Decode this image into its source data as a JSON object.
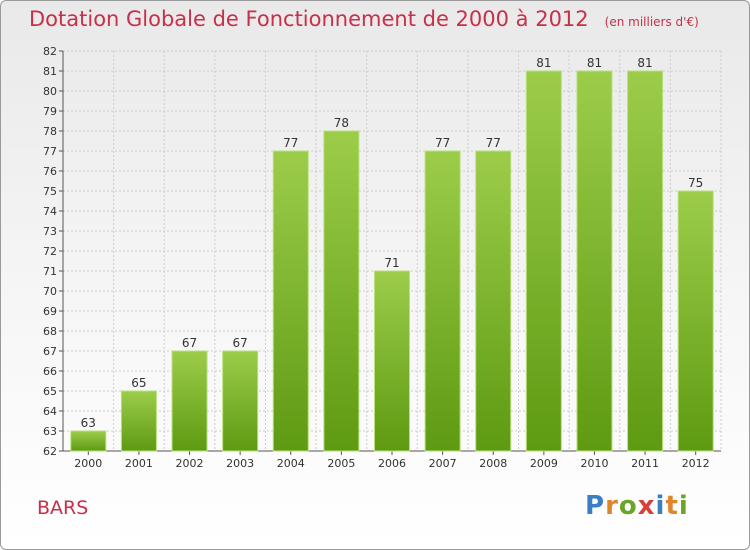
{
  "title": "Dotation Globale de Fonctionnement de 2000 à 2012",
  "subtitle": "(en milliers d'€)",
  "commune": "BARS",
  "logo": {
    "text": "Proxiti",
    "colors": [
      "#3a7fc4",
      "#e0862a",
      "#6aa52a",
      "#d6403a",
      "#3a7fc4",
      "#e0862a",
      "#6aa52a"
    ]
  },
  "colors": {
    "bar_top": "#9ccd4a",
    "bar_bottom": "#5e9a12",
    "title": "#c8304a",
    "grid": "#cccccc"
  },
  "chart_data": {
    "type": "bar",
    "categories": [
      "2000",
      "2001",
      "2002",
      "2003",
      "2004",
      "2005",
      "2006",
      "2007",
      "2008",
      "2009",
      "2010",
      "2011",
      "2012"
    ],
    "values": [
      63,
      65,
      67,
      67,
      77,
      78,
      71,
      77,
      77,
      81,
      81,
      81,
      75
    ],
    "ylim": [
      62,
      82
    ],
    "yticks": [
      62,
      63,
      64,
      65,
      66,
      67,
      68,
      69,
      70,
      71,
      72,
      73,
      74,
      75,
      76,
      77,
      78,
      79,
      80,
      81,
      82
    ],
    "xlabel": "",
    "ylabel": "",
    "grid": true,
    "data_labels": true
  }
}
